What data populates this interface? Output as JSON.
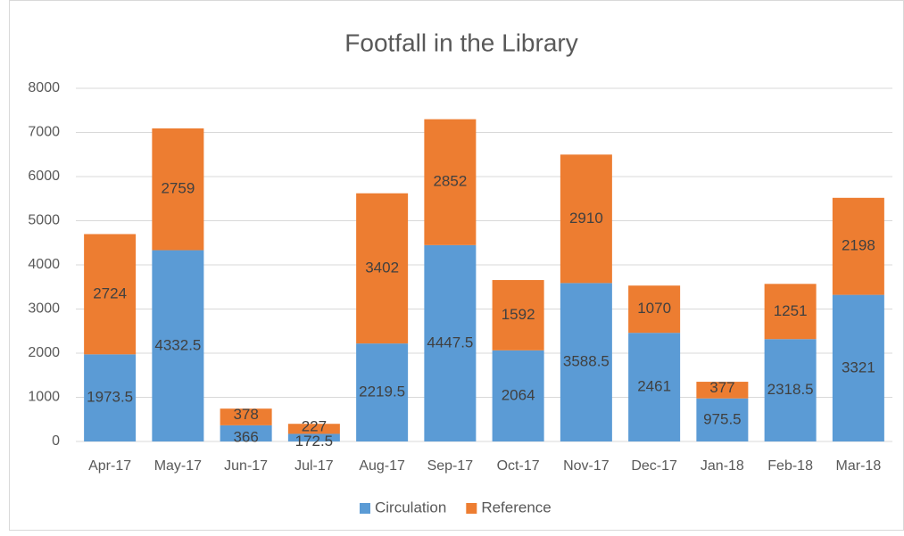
{
  "chart_data": {
    "type": "bar",
    "stacked": true,
    "title": "Footfall in the Library",
    "categories": [
      "Apr-17",
      "May-17",
      "Jun-17",
      "Jul-17",
      "Aug-17",
      "Sep-17",
      "Oct-17",
      "Nov-17",
      "Dec-17",
      "Jan-18",
      "Feb-18",
      "Mar-18"
    ],
    "series": [
      {
        "name": "Circulation",
        "color": "#5b9bd5",
        "values": [
          1973.5,
          4332.5,
          366,
          172.5,
          2219.5,
          4447.5,
          2064,
          3588.5,
          2461,
          975.5,
          2318.5,
          3321
        ]
      },
      {
        "name": "Reference",
        "color": "#ed7d31",
        "values": [
          2724,
          2759,
          378,
          227,
          3402,
          2852,
          1592,
          2910,
          1070,
          377,
          1251,
          2198
        ]
      }
    ],
    "ylim": [
      0,
      8000
    ],
    "yticks": [
      0,
      1000,
      2000,
      3000,
      4000,
      5000,
      6000,
      7000,
      8000
    ],
    "grid": true,
    "legend": "bottom"
  }
}
